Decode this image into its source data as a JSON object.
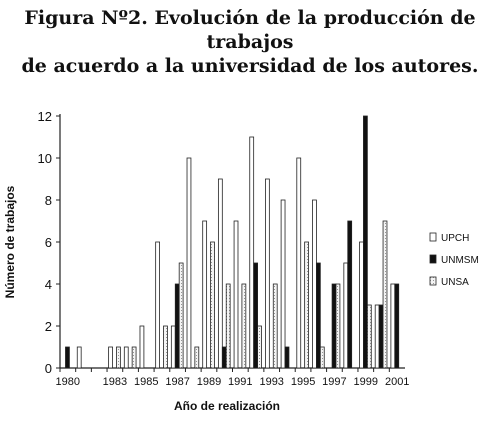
{
  "chart_data": {
    "type": "bar",
    "title_line1": "Figura Nº2. Evolución de la producción de trabajos",
    "title_line2": "de acuerdo a la universidad de los autores.",
    "xlabel": "Año de realización",
    "ylabel": "Número de trabajos",
    "ylim": [
      0,
      12
    ],
    "yticks": [
      0,
      2,
      4,
      6,
      8,
      10,
      12
    ],
    "grid": false,
    "legend_position": "right",
    "categories": [
      1980,
      1981,
      1982,
      1983,
      1984,
      1985,
      1986,
      1987,
      1988,
      1989,
      1990,
      1991,
      1992,
      1993,
      1994,
      1995,
      1996,
      1997,
      1998,
      1999,
      2000,
      2001
    ],
    "xtick_labels": [
      "1980",
      "",
      "",
      "1983",
      "",
      "1985",
      "",
      "1987",
      "",
      "1989",
      "",
      "1991",
      "",
      "1993",
      "",
      "1995",
      "",
      "1997",
      "",
      "1999",
      "",
      "2001"
    ],
    "series": [
      {
        "name": "UPCH",
        "style": "white",
        "values": [
          0,
          1,
          0,
          1,
          1,
          2,
          6,
          2,
          10,
          7,
          9,
          7,
          11,
          9,
          8,
          10,
          8,
          0,
          5,
          6,
          3,
          4
        ]
      },
      {
        "name": "UNMSM",
        "style": "black",
        "values": [
          1,
          0,
          0,
          0,
          0,
          0,
          0,
          4,
          0,
          0,
          1,
          0,
          5,
          0,
          1,
          0,
          5,
          4,
          7,
          12,
          3,
          4
        ]
      },
      {
        "name": "UNSA",
        "style": "dotted",
        "values": [
          0,
          0,
          0,
          1,
          1,
          0,
          2,
          5,
          1,
          6,
          4,
          4,
          2,
          4,
          0,
          6,
          1,
          4,
          0,
          3,
          7,
          0
        ]
      }
    ],
    "colors": {
      "upch": "#ffffff",
      "unmsm": "#111111",
      "unsa": "#f2f2f2",
      "stroke": "#222222"
    }
  }
}
